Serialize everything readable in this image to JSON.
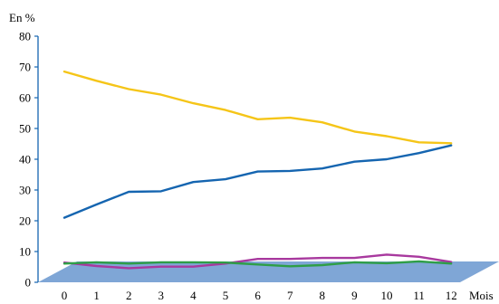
{
  "chart_data": {
    "type": "line",
    "title": "",
    "ylabel": "En %",
    "xlabel": "Mois",
    "x": [
      0,
      1,
      2,
      3,
      4,
      5,
      6,
      7,
      8,
      9,
      10,
      11,
      12
    ],
    "ylim": [
      0,
      80
    ],
    "yticks": [
      0,
      10,
      20,
      30,
      40,
      50,
      60,
      70,
      80
    ],
    "grid": false,
    "floor_color": "#7fa6d6",
    "series": [
      {
        "color": "#f5c518",
        "values": [
          68.5,
          65.5,
          62.8,
          61.0,
          58.2,
          56.0,
          53.0,
          53.5,
          52.0,
          49.0,
          47.5,
          45.5,
          45.2
        ]
      },
      {
        "color": "#1565b0",
        "values": [
          21.0,
          25.3,
          29.4,
          29.6,
          32.6,
          33.5,
          36.0,
          36.2,
          37.0,
          39.2,
          40.0,
          42.0,
          44.5
        ]
      },
      {
        "color": "#a8399e",
        "values": [
          6.4,
          5.3,
          4.6,
          5.1,
          5.1,
          6.1,
          7.6,
          7.6,
          7.9,
          7.9,
          9.0,
          8.3,
          6.6
        ]
      },
      {
        "color": "#2e9e47",
        "values": [
          6.1,
          6.5,
          6.1,
          6.5,
          6.5,
          6.4,
          5.8,
          5.2,
          5.6,
          6.5,
          6.2,
          6.8,
          6.1
        ]
      }
    ]
  }
}
